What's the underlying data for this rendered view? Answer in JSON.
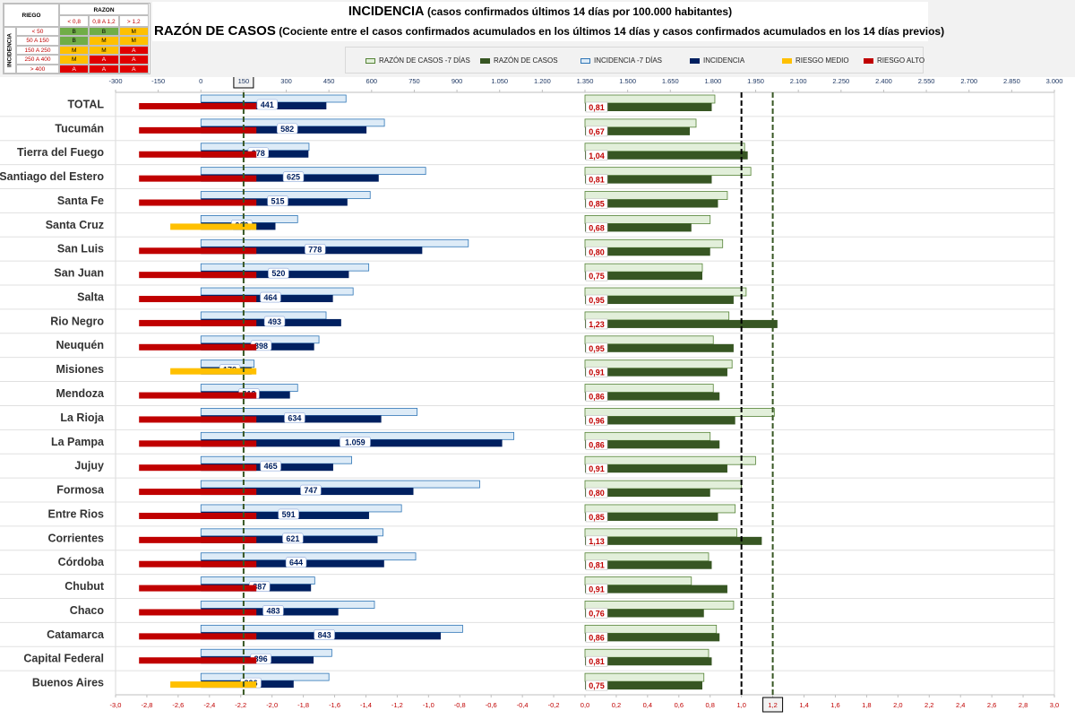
{
  "legend_table": {
    "riesgo_label": "RIEGO",
    "razon_label": "RAZON",
    "incidencia_label": "INCIDENCIA",
    "razon_cols": [
      "< 0,8",
      "0,8 A 1,2",
      "> 1,2"
    ],
    "incidencia_rows": [
      "< 50",
      "50 A 150",
      "150 A 250",
      "250 A 400",
      "> 400"
    ],
    "matrix": [
      [
        "B",
        "B",
        "M"
      ],
      [
        "B",
        "M",
        "M"
      ],
      [
        "M",
        "M",
        "A"
      ],
      [
        "M",
        "A",
        "A"
      ],
      [
        "A",
        "A",
        "A"
      ]
    ],
    "colors": {
      "B": "#70ad47",
      "M": "#ffc000",
      "A": "#e00000"
    }
  },
  "title": {
    "main": "INCIDENCIA",
    "main_sub": "(casos confirmados últimos 14 días por 100.000 habitantes)",
    "second": "RAZÓN DE CASOS",
    "second_sub": "(Cociente entre el casos confirmados acumulados en los últimos 14 días y casos confirmados acumulados en los 14 días previos)"
  },
  "series_legend": [
    {
      "label": "RAZÓN DE CASOS -7 DÍAS",
      "color": "#e2efda",
      "border": "#548235"
    },
    {
      "label": "RAZÓN DE CASOS",
      "color": "#375623",
      "border": "#375623"
    },
    {
      "label": "INCIDENCIA -7 DÍAS",
      "color": "#ddebf7",
      "border": "#2e75b6"
    },
    {
      "label": "INCIDENCIA",
      "color": "#002060",
      "border": "#002060"
    },
    {
      "label": "RIESGO MEDIO",
      "color": "#ffc000",
      "border": "#ffc000"
    },
    {
      "label": "RIESGO ALTO",
      "color": "#c00000",
      "border": "#c00000"
    }
  ],
  "chart_data": {
    "type": "bar",
    "orientation": "horizontal",
    "top_axis": {
      "min": -300,
      "max": 3000,
      "step": 150,
      "tick_labels": [
        "-300",
        "-150",
        "0",
        "150",
        "300",
        "450",
        "600",
        "750",
        "900",
        "1.050",
        "1.200",
        "1.350",
        "1.500",
        "1.650",
        "1.800",
        "1.950",
        "2.100",
        "2.250",
        "2.400",
        "2.550",
        "2.700",
        "2.850",
        "3.000"
      ],
      "highlighted": "150"
    },
    "bottom_axis": {
      "min": -3.0,
      "max": 3.0,
      "step": 0.2,
      "tick_labels": [
        "-3,0",
        "-2,8",
        "-2,6",
        "-2,4",
        "-2,2",
        "-2,0",
        "-1,8",
        "-1,6",
        "-1,4",
        "-1,2",
        "-1,0",
        "-0,8",
        "-0,6",
        "-0,4",
        "-0,2",
        "0,0",
        "0,2",
        "0,4",
        "0,6",
        "0,8",
        "1,0",
        "1,2",
        "1,4",
        "1,6",
        "1,8",
        "2,0",
        "2,2",
        "2,4",
        "2,6",
        "2,8",
        "3,0"
      ],
      "highlighted": "1,2"
    },
    "reference_lines": {
      "incidencia": 150,
      "razon_black": 1.0,
      "razon_green": 1.2
    },
    "colors": {
      "inc_prev_fill": "#ddebf7",
      "inc_prev_border": "#2e75b6",
      "inc_fill": "#002060",
      "raz_prev_fill": "#e2efda",
      "raz_prev_border": "#548235",
      "raz_fill": "#375623",
      "riesgo_alto": "#c00000",
      "riesgo_medio": "#ffc000",
      "raz_label_color": "#c00000",
      "inc_label_color": "#002060"
    },
    "rows": [
      {
        "name": "TOTAL",
        "inc": 441,
        "inc_label": "441",
        "inc_prev": 510,
        "raz": 0.81,
        "raz_label": "0,81",
        "raz_prev": 0.83,
        "risk": "alto"
      },
      {
        "name": "Tucumán",
        "inc": 582,
        "inc_label": "582",
        "inc_prev": 645,
        "raz": 0.67,
        "raz_label": "0,67",
        "raz_prev": 0.71,
        "risk": "alto"
      },
      {
        "name": "Tierra del Fuego",
        "inc": 378,
        "inc_label": "378",
        "inc_prev": 380,
        "raz": 1.04,
        "raz_label": "1,04",
        "raz_prev": 1.02,
        "risk": "alto"
      },
      {
        "name": "Santiago del Estero",
        "inc": 625,
        "inc_label": "625",
        "inc_prev": 790,
        "raz": 0.81,
        "raz_label": "0,81",
        "raz_prev": 1.06,
        "risk": "alto"
      },
      {
        "name": "Santa Fe",
        "inc": 515,
        "inc_label": "515",
        "inc_prev": 595,
        "raz": 0.85,
        "raz_label": "0,85",
        "raz_prev": 0.91,
        "risk": "alto"
      },
      {
        "name": "Santa Cruz",
        "inc": 262,
        "inc_label": "262",
        "inc_prev": 340,
        "raz": 0.68,
        "raz_label": "0,68",
        "raz_prev": 0.8,
        "risk": "medio"
      },
      {
        "name": "San Luis",
        "inc": 778,
        "inc_label": "778",
        "inc_prev": 940,
        "raz": 0.8,
        "raz_label": "0,80",
        "raz_prev": 0.88,
        "risk": "alto"
      },
      {
        "name": "San Juan",
        "inc": 520,
        "inc_label": "520",
        "inc_prev": 590,
        "raz": 0.75,
        "raz_label": "0,75",
        "raz_prev": 0.75,
        "risk": "alto"
      },
      {
        "name": "Salta",
        "inc": 464,
        "inc_label": "464",
        "inc_prev": 535,
        "raz": 0.95,
        "raz_label": "0,95",
        "raz_prev": 1.03,
        "risk": "alto"
      },
      {
        "name": "Rio Negro",
        "inc": 493,
        "inc_label": "493",
        "inc_prev": 440,
        "raz": 1.23,
        "raz_label": "1,23",
        "raz_prev": 0.92,
        "risk": "alto"
      },
      {
        "name": "Neuquén",
        "inc": 398,
        "inc_label": "398",
        "inc_prev": 415,
        "raz": 0.95,
        "raz_label": "0,95",
        "raz_prev": 0.82,
        "risk": "alto"
      },
      {
        "name": "Misiones",
        "inc": 178,
        "inc_label": "178",
        "inc_prev": 187,
        "raz": 0.91,
        "raz_label": "0,91",
        "raz_prev": 0.94,
        "risk": "medio"
      },
      {
        "name": "Mendoza",
        "inc": 313,
        "inc_label": "313",
        "inc_prev": 340,
        "raz": 0.86,
        "raz_label": "0,86",
        "raz_prev": 0.82,
        "risk": "alto"
      },
      {
        "name": "La Rioja",
        "inc": 634,
        "inc_label": "634",
        "inc_prev": 760,
        "raz": 0.96,
        "raz_label": "0,96",
        "raz_prev": 1.21,
        "risk": "alto"
      },
      {
        "name": "La Pampa",
        "inc": 1059,
        "inc_label": "1.059",
        "inc_prev": 1100,
        "raz": 0.86,
        "raz_label": "0,86",
        "raz_prev": 0.8,
        "risk": "alto"
      },
      {
        "name": "Jujuy",
        "inc": 465,
        "inc_label": "465",
        "inc_prev": 530,
        "raz": 0.91,
        "raz_label": "0,91",
        "raz_prev": 1.09,
        "risk": "alto"
      },
      {
        "name": "Formosa",
        "inc": 747,
        "inc_label": "747",
        "inc_prev": 980,
        "raz": 0.8,
        "raz_label": "0,80",
        "raz_prev": 1.0,
        "risk": "alto"
      },
      {
        "name": "Entre Rios",
        "inc": 591,
        "inc_label": "591",
        "inc_prev": 705,
        "raz": 0.85,
        "raz_label": "0,85",
        "raz_prev": 0.96,
        "risk": "alto"
      },
      {
        "name": "Corrientes",
        "inc": 621,
        "inc_label": "621",
        "inc_prev": 640,
        "raz": 1.13,
        "raz_label": "1,13",
        "raz_prev": 0.97,
        "risk": "alto"
      },
      {
        "name": "Córdoba",
        "inc": 644,
        "inc_label": "644",
        "inc_prev": 755,
        "raz": 0.81,
        "raz_label": "0,81",
        "raz_prev": 0.79,
        "risk": "alto"
      },
      {
        "name": "Chubut",
        "inc": 387,
        "inc_label": "387",
        "inc_prev": 400,
        "raz": 0.91,
        "raz_label": "0,91",
        "raz_prev": 0.68,
        "risk": "alto"
      },
      {
        "name": "Chaco",
        "inc": 483,
        "inc_label": "483",
        "inc_prev": 610,
        "raz": 0.76,
        "raz_label": "0,76",
        "raz_prev": 0.95,
        "risk": "alto"
      },
      {
        "name": "Catamarca",
        "inc": 843,
        "inc_label": "843",
        "inc_prev": 920,
        "raz": 0.86,
        "raz_label": "0,86",
        "raz_prev": 0.84,
        "risk": "alto"
      },
      {
        "name": "Capital Federal",
        "inc": 396,
        "inc_label": "396",
        "inc_prev": 460,
        "raz": 0.81,
        "raz_label": "0,81",
        "raz_prev": 0.79,
        "risk": "alto"
      },
      {
        "name": "Buenos Aires",
        "inc": 326,
        "inc_label": "326",
        "inc_prev": 450,
        "raz": 0.75,
        "raz_label": "0,75",
        "raz_prev": 0.76,
        "risk": "medio"
      }
    ]
  }
}
